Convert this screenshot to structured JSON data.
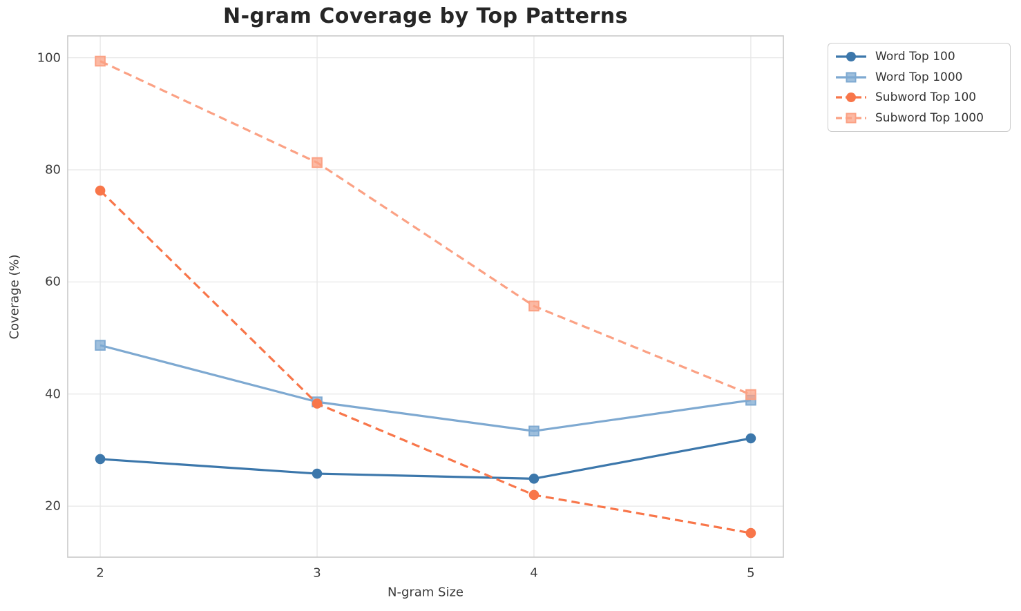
{
  "chart_data": {
    "type": "line",
    "title": "N-gram Coverage by Top Patterns",
    "xlabel": "N-gram Size",
    "ylabel": "Coverage (%)",
    "x": [
      2,
      3,
      4,
      5
    ],
    "x_ticks": [
      2,
      3,
      4,
      5
    ],
    "y_ticks": [
      20,
      40,
      60,
      80,
      100
    ],
    "xlim": [
      1.85,
      5.15
    ],
    "ylim": [
      10.9,
      103.9
    ],
    "grid": true,
    "legend_position": "upper right outside plot",
    "series": [
      {
        "name": "Word Top 100",
        "values": [
          28.4,
          25.8,
          24.9,
          32.1
        ],
        "color": "#3c77ab",
        "style": "solid",
        "marker": "circle"
      },
      {
        "name": "Word Top 1000",
        "values": [
          48.7,
          38.6,
          33.4,
          38.9
        ],
        "color": "#7ea9d1",
        "style": "solid",
        "marker": "square"
      },
      {
        "name": "Subword Top 100",
        "values": [
          76.3,
          38.3,
          22.0,
          15.2
        ],
        "color": "#f8764a",
        "style": "dashed",
        "marker": "circle"
      },
      {
        "name": "Subword Top 1000",
        "values": [
          99.4,
          81.3,
          55.7,
          39.9
        ],
        "color": "#fba184",
        "style": "dashed",
        "marker": "square"
      }
    ],
    "style_colors": {
      "grid": "#e7e7e7",
      "frame": "#c9c9c9",
      "tick_text": "#3a3a3a",
      "title_text": "#262626",
      "legend_border": "#cccccc"
    }
  }
}
